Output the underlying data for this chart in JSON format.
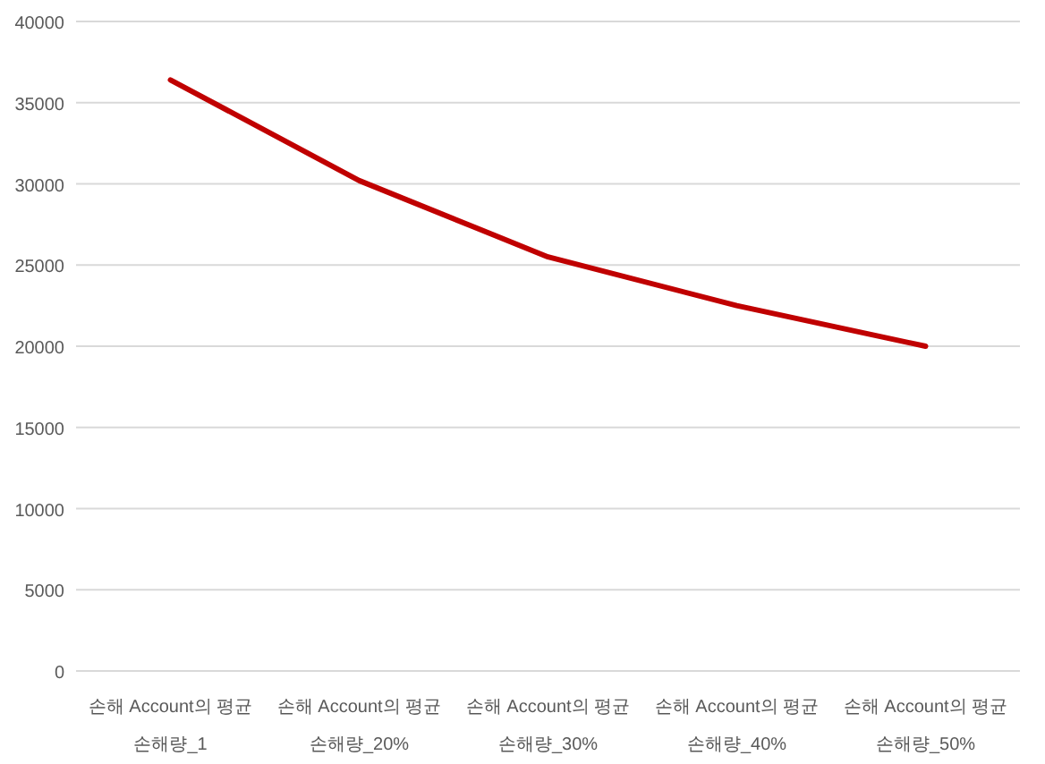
{
  "chart_data": {
    "type": "line",
    "categories": [
      "손해 Account의 평균 손해량_1",
      "손해 Account의 평균 손해량_20%",
      "손해 Account의 평균 손해량_30%",
      "손해 Account의 평균 손해량_40%",
      "손해 Account의 평균 손해량_50%"
    ],
    "series": [
      {
        "color": "#c00000",
        "values": [
          36400,
          30200,
          25500,
          22500,
          20000
        ]
      }
    ],
    "ylim": [
      0,
      40000
    ],
    "yticks": [
      0,
      5000,
      10000,
      15000,
      20000,
      25000,
      30000,
      35000,
      40000
    ],
    "grid": "y",
    "marker": "none",
    "line_style": "solid"
  }
}
